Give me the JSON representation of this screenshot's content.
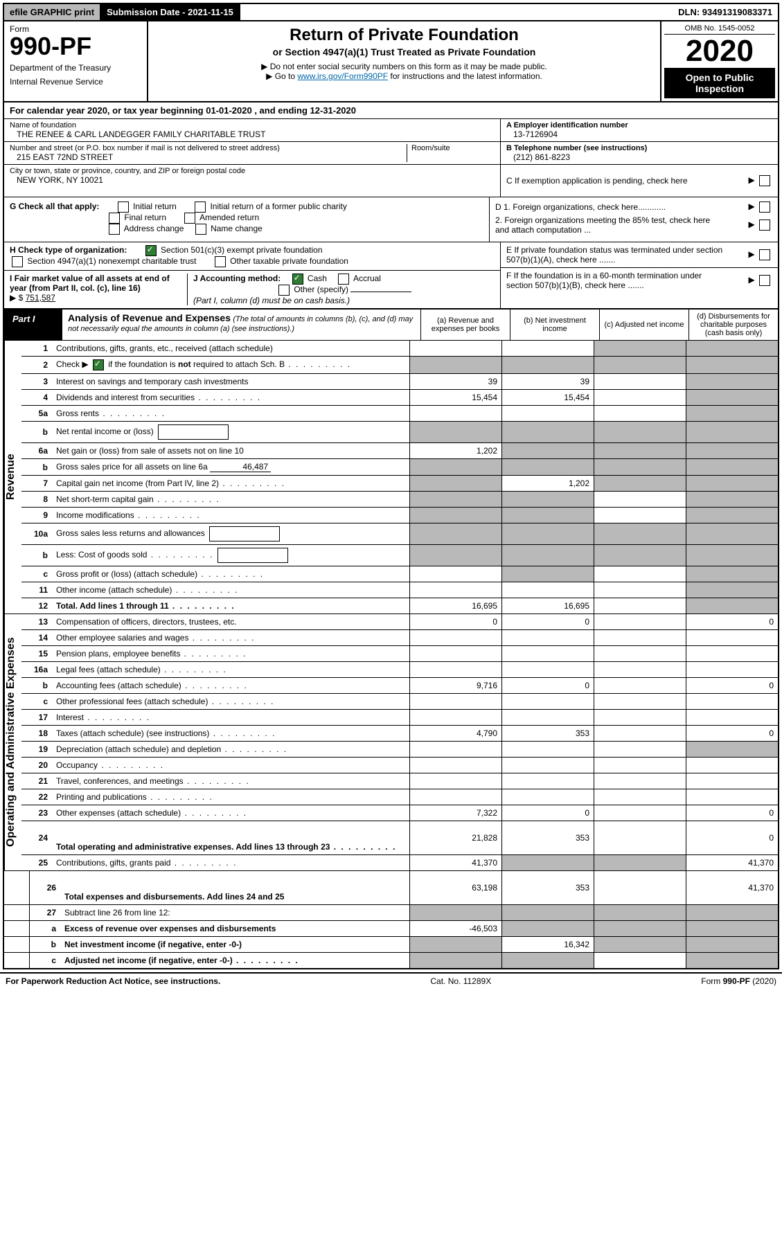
{
  "topbar": {
    "efile": "efile GRAPHIC print",
    "submission": "Submission Date - 2021-11-15",
    "dln": "DLN: 93491319083371"
  },
  "header": {
    "form_word": "Form",
    "form_number": "990-PF",
    "dept": "Department of the Treasury",
    "irs": "Internal Revenue Service",
    "title": "Return of Private Foundation",
    "subtitle": "or Section 4947(a)(1) Trust Treated as Private Foundation",
    "instr1": "▶ Do not enter social security numbers on this form as it may be made public.",
    "instr2_pre": "▶ Go to ",
    "instr2_link": "www.irs.gov/Form990PF",
    "instr2_post": " for instructions and the latest information.",
    "omb": "OMB No. 1545-0052",
    "year": "2020",
    "open": "Open to Public Inspection"
  },
  "calendar": "For calendar year 2020, or tax year beginning 01-01-2020                      , and ending 12-31-2020",
  "entity": {
    "name_label": "Name of foundation",
    "name": "THE RENEE & CARL LANDEGGER FAMILY CHARITABLE TRUST",
    "addr_label": "Number and street (or P.O. box number if mail is not delivered to street address)",
    "addr": "215 EAST 72ND STREET",
    "room_label": "Room/suite",
    "city_label": "City or town, state or province, country, and ZIP or foreign postal code",
    "city": "NEW YORK, NY  10021",
    "ein_label": "A Employer identification number",
    "ein": "13-7126904",
    "phone_label": "B Telephone number (see instructions)",
    "phone": "(212) 861-8223",
    "c_label": "C If exemption application is pending, check here"
  },
  "g_section": {
    "label": "G Check all that apply:",
    "opts": [
      "Initial return",
      "Initial return of a former public charity",
      "Final return",
      "Amended return",
      "Address change",
      "Name change"
    ]
  },
  "d_section": {
    "d1": "D 1. Foreign organizations, check here............",
    "d2": "2. Foreign organizations meeting the 85% test, check here and attach computation ...",
    "e": "E  If private foundation status was terminated under section 507(b)(1)(A), check here .......",
    "f": "F  If the foundation is in a 60-month termination under section 507(b)(1)(B), check here ......."
  },
  "h_section": {
    "label": "H Check type of organization:",
    "opt1": "Section 501(c)(3) exempt private foundation",
    "opt2": "Section 4947(a)(1) nonexempt charitable trust",
    "opt3": "Other taxable private foundation"
  },
  "i_section": {
    "label": "I Fair market value of all assets at end of year (from Part II, col. (c), line 16)",
    "value_prefix": "▶ $",
    "value": "751,587"
  },
  "j_section": {
    "label": "J Accounting method:",
    "cash": "Cash",
    "accrual": "Accrual",
    "other": "Other (specify)",
    "note": "(Part I, column (d) must be on cash basis.)"
  },
  "part1": {
    "label": "Part I",
    "title": "Analysis of Revenue and Expenses",
    "note": "(The total of amounts in columns (b), (c), and (d) may not necessarily equal the amounts in column (a) (see instructions).)",
    "col_a": "(a) Revenue and expenses per books",
    "col_b": "(b) Net investment income",
    "col_c": "(c) Adjusted net income",
    "col_d": "(d) Disbursements for charitable purposes (cash basis only)"
  },
  "side_labels": {
    "revenue": "Revenue",
    "expenses": "Operating and Administrative Expenses"
  },
  "rows": [
    {
      "n": "1",
      "desc": "Contributions, gifts, grants, etc., received (attach schedule)",
      "a": "",
      "b": "",
      "c": "shade",
      "d": "shade"
    },
    {
      "n": "2",
      "desc": "Check ▶ ☑ if the foundation is not required to attach Sch. B",
      "dots": true,
      "a": "shade",
      "b": "shade",
      "c": "shade",
      "d": "shade",
      "bold_not": true
    },
    {
      "n": "3",
      "desc": "Interest on savings and temporary cash investments",
      "a": "39",
      "b": "39",
      "c": "",
      "d": "shade"
    },
    {
      "n": "4",
      "desc": "Dividends and interest from securities",
      "dots": true,
      "a": "15,454",
      "b": "15,454",
      "c": "",
      "d": "shade"
    },
    {
      "n": "5a",
      "desc": "Gross rents",
      "dots": true,
      "a": "",
      "b": "",
      "c": "",
      "d": "shade"
    },
    {
      "n": "b",
      "desc": "Net rental income or (loss)",
      "box": true,
      "a": "shade",
      "b": "shade",
      "c": "shade",
      "d": "shade"
    },
    {
      "n": "6a",
      "desc": "Net gain or (loss) from sale of assets not on line 10",
      "a": "1,202",
      "b": "shade",
      "c": "shade",
      "d": "shade"
    },
    {
      "n": "b",
      "desc": "Gross sales price for all assets on line 6a",
      "inline_val": "46,487",
      "a": "shade",
      "b": "shade",
      "c": "shade",
      "d": "shade"
    },
    {
      "n": "7",
      "desc": "Capital gain net income (from Part IV, line 2)",
      "dots": true,
      "a": "shade",
      "b": "1,202",
      "c": "shade",
      "d": "shade"
    },
    {
      "n": "8",
      "desc": "Net short-term capital gain",
      "dots": true,
      "a": "shade",
      "b": "shade",
      "c": "",
      "d": "shade"
    },
    {
      "n": "9",
      "desc": "Income modifications",
      "dots": true,
      "a": "shade",
      "b": "shade",
      "c": "",
      "d": "shade"
    },
    {
      "n": "10a",
      "desc": "Gross sales less returns and allowances",
      "box": true,
      "a": "shade",
      "b": "shade",
      "c": "shade",
      "d": "shade"
    },
    {
      "n": "b",
      "desc": "Less: Cost of goods sold",
      "dots": true,
      "box": true,
      "a": "shade",
      "b": "shade",
      "c": "shade",
      "d": "shade"
    },
    {
      "n": "c",
      "desc": "Gross profit or (loss) (attach schedule)",
      "dots": true,
      "a": "",
      "b": "shade",
      "c": "",
      "d": "shade"
    },
    {
      "n": "11",
      "desc": "Other income (attach schedule)",
      "dots": true,
      "a": "",
      "b": "",
      "c": "",
      "d": "shade"
    },
    {
      "n": "12",
      "desc": "Total. Add lines 1 through 11",
      "dots": true,
      "bold": true,
      "a": "16,695",
      "b": "16,695",
      "c": "",
      "d": "shade"
    },
    {
      "n": "13",
      "desc": "Compensation of officers, directors, trustees, etc.",
      "a": "0",
      "b": "0",
      "c": "",
      "d": "0"
    },
    {
      "n": "14",
      "desc": "Other employee salaries and wages",
      "dots": true,
      "a": "",
      "b": "",
      "c": "",
      "d": ""
    },
    {
      "n": "15",
      "desc": "Pension plans, employee benefits",
      "dots": true,
      "a": "",
      "b": "",
      "c": "",
      "d": ""
    },
    {
      "n": "16a",
      "desc": "Legal fees (attach schedule)",
      "dots": true,
      "a": "",
      "b": "",
      "c": "",
      "d": ""
    },
    {
      "n": "b",
      "desc": "Accounting fees (attach schedule)",
      "dots": true,
      "a": "9,716",
      "b": "0",
      "c": "",
      "d": "0"
    },
    {
      "n": "c",
      "desc": "Other professional fees (attach schedule)",
      "dots": true,
      "a": "",
      "b": "",
      "c": "",
      "d": ""
    },
    {
      "n": "17",
      "desc": "Interest",
      "dots": true,
      "a": "",
      "b": "",
      "c": "",
      "d": ""
    },
    {
      "n": "18",
      "desc": "Taxes (attach schedule) (see instructions)",
      "dots": true,
      "a": "4,790",
      "b": "353",
      "c": "",
      "d": "0"
    },
    {
      "n": "19",
      "desc": "Depreciation (attach schedule) and depletion",
      "dots": true,
      "a": "",
      "b": "",
      "c": "",
      "d": "shade"
    },
    {
      "n": "20",
      "desc": "Occupancy",
      "dots": true,
      "a": "",
      "b": "",
      "c": "",
      "d": ""
    },
    {
      "n": "21",
      "desc": "Travel, conferences, and meetings",
      "dots": true,
      "a": "",
      "b": "",
      "c": "",
      "d": ""
    },
    {
      "n": "22",
      "desc": "Printing and publications",
      "dots": true,
      "a": "",
      "b": "",
      "c": "",
      "d": ""
    },
    {
      "n": "23",
      "desc": "Other expenses (attach schedule)",
      "dots": true,
      "a": "7,322",
      "b": "0",
      "c": "",
      "d": "0"
    },
    {
      "n": "24",
      "desc": "Total operating and administrative expenses. Add lines 13 through 23",
      "dots": true,
      "bold": true,
      "tall": true,
      "a": "21,828",
      "b": "353",
      "c": "",
      "d": "0"
    },
    {
      "n": "25",
      "desc": "Contributions, gifts, grants paid",
      "dots": true,
      "a": "41,370",
      "b": "shade",
      "c": "shade",
      "d": "41,370"
    },
    {
      "n": "26",
      "desc": "Total expenses and disbursements. Add lines 24 and 25",
      "bold": true,
      "tall": true,
      "a": "63,198",
      "b": "353",
      "c": "",
      "d": "41,370"
    },
    {
      "n": "27",
      "desc": "Subtract line 26 from line 12:",
      "a": "shade",
      "b": "shade",
      "c": "shade",
      "d": "shade"
    },
    {
      "n": "a",
      "desc": "Excess of revenue over expenses and disbursements",
      "bold": true,
      "a": "-46,503",
      "b": "shade",
      "c": "shade",
      "d": "shade"
    },
    {
      "n": "b",
      "desc": "Net investment income (if negative, enter -0-)",
      "bold": true,
      "a": "shade",
      "b": "16,342",
      "c": "shade",
      "d": "shade"
    },
    {
      "n": "c",
      "desc": "Adjusted net income (if negative, enter -0-)",
      "dots": true,
      "bold": true,
      "a": "shade",
      "b": "shade",
      "c": "",
      "d": "shade"
    }
  ],
  "footer": {
    "left": "For Paperwork Reduction Act Notice, see instructions.",
    "center": "Cat. No. 11289X",
    "right": "Form 990-PF (2020)"
  }
}
